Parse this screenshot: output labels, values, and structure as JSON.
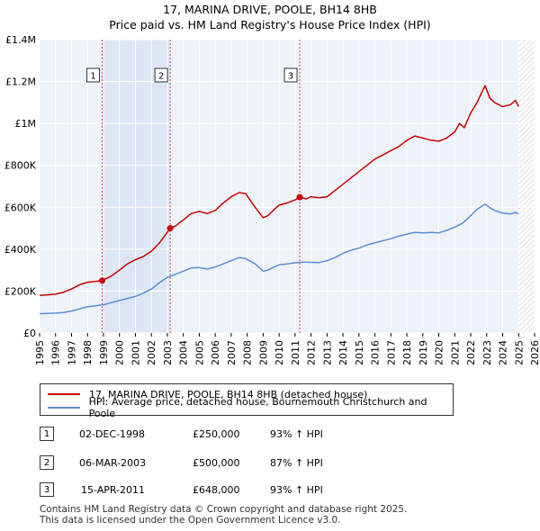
{
  "chart_data": {
    "type": "line",
    "title": "17, MARINA DRIVE, POOLE, BH14 8HB",
    "subtitle": "Price paid vs. HM Land Registry's House Price Index (HPI)",
    "xlim": [
      1995,
      2026
    ],
    "ylim": [
      0,
      1400000
    ],
    "x_ticks": [
      "1995",
      "1996",
      "1997",
      "1998",
      "1999",
      "2000",
      "2001",
      "2002",
      "2003",
      "2004",
      "2005",
      "2006",
      "2007",
      "2008",
      "2009",
      "2010",
      "2011",
      "2012",
      "2013",
      "2014",
      "2015",
      "2016",
      "2017",
      "2018",
      "2019",
      "2020",
      "2021",
      "2022",
      "2023",
      "2024",
      "2025",
      "2026"
    ],
    "y_ticks": [
      {
        "value": 0,
        "label": "£0"
      },
      {
        "value": 200000,
        "label": "£200K"
      },
      {
        "value": 400000,
        "label": "£400K"
      },
      {
        "value": 600000,
        "label": "£600K"
      },
      {
        "value": 800000,
        "label": "£800K"
      },
      {
        "value": 1000000,
        "label": "£1M"
      },
      {
        "value": 1200000,
        "label": "£1.2M"
      },
      {
        "value": 1400000,
        "label": "£1.4M"
      }
    ],
    "grid": true,
    "future_hatch_start": 2025.0,
    "shaded_span": [
      1998.92,
      2003.18
    ],
    "series": [
      {
        "name": "17, MARINA DRIVE, POOLE, BH14 8HB (detached house)",
        "color": "#cc0000",
        "x": [
          1995.0,
          1995.5,
          1996.0,
          1996.5,
          1997.0,
          1997.5,
          1998.0,
          1998.5,
          1998.92,
          1999.5,
          2000.0,
          2000.5,
          2001.0,
          2001.5,
          2002.0,
          2002.5,
          2003.0,
          2003.18,
          2003.5,
          2004.0,
          2004.5,
          2005.0,
          2005.5,
          2006.0,
          2006.5,
          2007.0,
          2007.5,
          2007.9,
          2008.5,
          2009.0,
          2009.3,
          2009.7,
          2010.0,
          2010.5,
          2011.0,
          2011.29,
          2011.7,
          2012.0,
          2012.5,
          2013.0,
          2013.5,
          2014.0,
          2014.5,
          2015.0,
          2015.5,
          2016.0,
          2016.5,
          2017.0,
          2017.5,
          2018.0,
          2018.5,
          2019.0,
          2019.5,
          2020.0,
          2020.5,
          2021.0,
          2021.3,
          2021.6,
          2022.0,
          2022.4,
          2022.7,
          2022.9,
          2023.2,
          2023.5,
          2024.0,
          2024.5,
          2024.8,
          2025.0
        ],
        "values": [
          180000,
          182000,
          185000,
          195000,
          210000,
          230000,
          242000,
          246000,
          250000,
          272000,
          300000,
          330000,
          350000,
          365000,
          390000,
          430000,
          480000,
          500000,
          510000,
          540000,
          570000,
          580000,
          570000,
          585000,
          620000,
          650000,
          670000,
          665000,
          600000,
          550000,
          560000,
          590000,
          610000,
          620000,
          635000,
          648000,
          640000,
          650000,
          645000,
          650000,
          680000,
          710000,
          740000,
          770000,
          800000,
          830000,
          850000,
          870000,
          890000,
          920000,
          940000,
          930000,
          920000,
          915000,
          930000,
          960000,
          1000000,
          980000,
          1050000,
          1100000,
          1150000,
          1180000,
          1120000,
          1100000,
          1080000,
          1090000,
          1110000,
          1080000
        ]
      },
      {
        "name": "HPI: Average price, detached house, Bournemouth Christchurch and Poole",
        "color": "#5b8ed4",
        "x": [
          1995.0,
          1995.5,
          1996.0,
          1996.5,
          1997.0,
          1997.5,
          1998.0,
          1998.5,
          1999.0,
          1999.5,
          2000.0,
          2000.5,
          2001.0,
          2001.5,
          2002.0,
          2002.5,
          2003.0,
          2003.5,
          2004.0,
          2004.5,
          2005.0,
          2005.5,
          2006.0,
          2006.5,
          2007.0,
          2007.5,
          2007.9,
          2008.5,
          2009.0,
          2009.3,
          2009.7,
          2010.0,
          2010.5,
          2011.0,
          2011.5,
          2012.0,
          2012.5,
          2013.0,
          2013.5,
          2014.0,
          2014.5,
          2015.0,
          2015.5,
          2016.0,
          2016.5,
          2017.0,
          2017.5,
          2018.0,
          2018.5,
          2019.0,
          2019.5,
          2020.0,
          2020.5,
          2021.0,
          2021.5,
          2022.0,
          2022.4,
          2022.7,
          2022.9,
          2023.2,
          2023.5,
          2024.0,
          2024.5,
          2024.8,
          2025.0
        ],
        "values": [
          92000,
          93000,
          95000,
          98000,
          105000,
          115000,
          125000,
          130000,
          135000,
          145000,
          155000,
          165000,
          175000,
          190000,
          210000,
          240000,
          265000,
          280000,
          295000,
          310000,
          312000,
          305000,
          315000,
          330000,
          345000,
          360000,
          355000,
          330000,
          295000,
          300000,
          315000,
          325000,
          330000,
          335000,
          338000,
          337000,
          336000,
          345000,
          360000,
          380000,
          395000,
          405000,
          420000,
          430000,
          440000,
          450000,
          462000,
          472000,
          480000,
          478000,
          480000,
          478000,
          490000,
          505000,
          525000,
          560000,
          590000,
          605000,
          615000,
          598000,
          585000,
          572000,
          568000,
          575000,
          568000
        ]
      }
    ],
    "sales": [
      {
        "num": "1",
        "x": 1998.92,
        "price": 250000,
        "date": "02-DEC-1998",
        "price_label": "£250,000",
        "hpi_label": "93% ↑ HPI"
      },
      {
        "num": "2",
        "x": 2003.18,
        "price": 500000,
        "date": "06-MAR-2003",
        "price_label": "£500,000",
        "hpi_label": "87% ↑ HPI"
      },
      {
        "num": "3",
        "x": 2011.29,
        "price": 648000,
        "date": "15-APR-2011",
        "price_label": "£648,000",
        "hpi_label": "93% ↑ HPI"
      }
    ],
    "sale_marker_color": "#cc0000",
    "vline_color": "#cc0000"
  },
  "legend": {
    "property_label": "17, MARINA DRIVE, POOLE, BH14 8HB (detached house)",
    "hpi_label": "HPI: Average price, detached house, Bournemouth Christchurch and Poole",
    "property_color": "#cc0000",
    "hpi_color": "#5b8ed4"
  },
  "footer": {
    "line1": "Contains HM Land Registry data © Crown copyright and database right 2025.",
    "line2": "This data is licensed under the Open Government Licence v3.0."
  }
}
